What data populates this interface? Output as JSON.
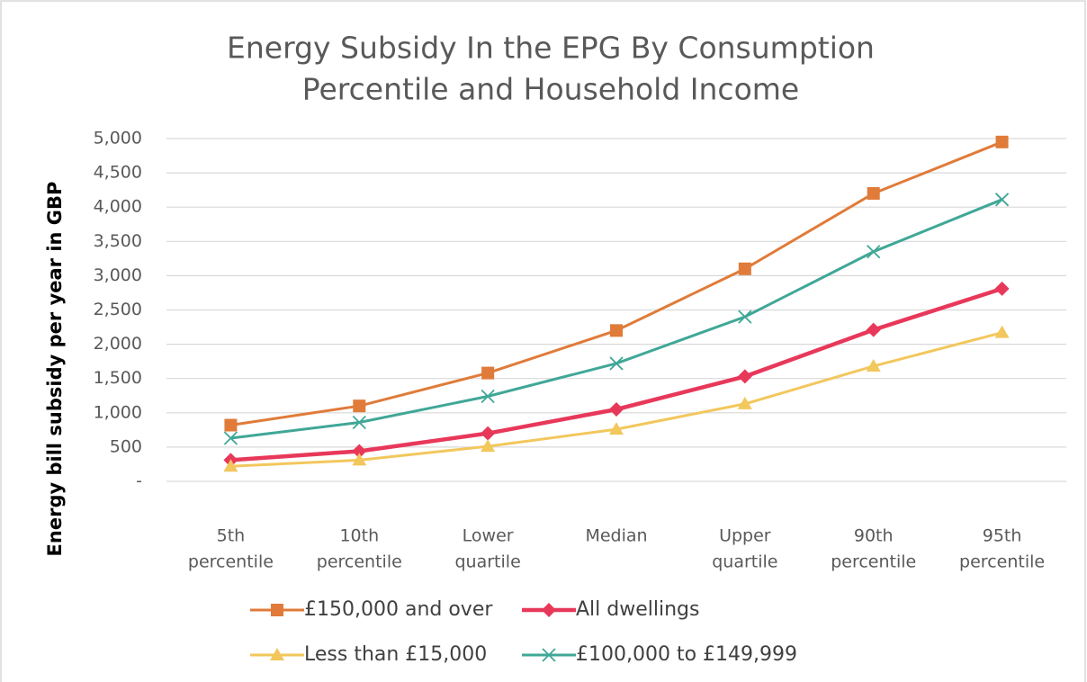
{
  "chart_data": {
    "type": "line",
    "title": [
      "Energy Subsidy In the EPG By Consumption",
      "Percentile and Household Income"
    ],
    "y_label": "Energy bill subsidy per year  in GBP",
    "categories": [
      [
        "5th",
        "percentile"
      ],
      [
        "10th",
        "percentile"
      ],
      [
        "Lower",
        "quartile"
      ],
      [
        "Median"
      ],
      [
        "Upper",
        "quartile"
      ],
      [
        "90th",
        "percentile"
      ],
      [
        "95th",
        "percentile"
      ]
    ],
    "series": [
      {
        "name": "£150,000 and over",
        "color": "#e07b39",
        "marker": "square",
        "values": [
          820,
          1100,
          1580,
          2200,
          3100,
          4200,
          4950
        ]
      },
      {
        "name": "All dwellings",
        "color": "#e8385a",
        "marker": "diamond",
        "values": [
          310,
          440,
          700,
          1050,
          1530,
          2210,
          2810
        ]
      },
      {
        "name": "Less than £15,000",
        "color": "#f2c75c",
        "marker": "triangle",
        "values": [
          220,
          310,
          510,
          760,
          1130,
          1680,
          2170
        ]
      },
      {
        "name": "£100,000 to £149,999",
        "color": "#40a797",
        "marker": "x",
        "values": [
          630,
          860,
          1240,
          1720,
          2400,
          3350,
          4110
        ]
      }
    ],
    "ylim": [
      0,
      5000
    ],
    "yticks": [
      {
        "value": 0,
        "label": "-"
      },
      500,
      {
        "value": 1000,
        "label": "1,000"
      },
      {
        "value": 1500,
        "label": "1,500"
      },
      {
        "value": 2000,
        "label": "2,000"
      },
      {
        "value": 2500,
        "label": "2,500"
      },
      {
        "value": 3000,
        "label": "3,000"
      },
      {
        "value": 3500,
        "label": "3,500"
      },
      {
        "value": 4000,
        "label": "4,000"
      },
      {
        "value": 4500,
        "label": "4,500"
      },
      {
        "value": 5000,
        "label": "5,000"
      }
    ],
    "grid": true,
    "legend": "bottom"
  }
}
